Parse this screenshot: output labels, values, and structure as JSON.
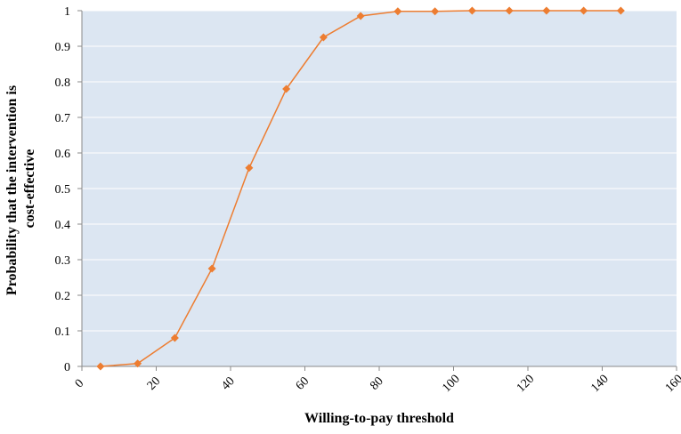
{
  "chart_data": {
    "type": "line",
    "title": "",
    "xlabel": "Willing-to-pay threshold",
    "ylabel_lines": [
      "Probability that the intervention is",
      "cost-effective"
    ],
    "xlim": [
      0,
      160
    ],
    "ylim": [
      0,
      1
    ],
    "x_ticks": [
      0,
      20,
      40,
      60,
      80,
      100,
      120,
      140,
      160
    ],
    "y_ticks": [
      0,
      0.1,
      0.2,
      0.3,
      0.4,
      0.5,
      0.6,
      0.7,
      0.8,
      0.9,
      1
    ],
    "x_tick_labels": [
      "0",
      "20",
      "40",
      "60",
      "80",
      "100",
      "120",
      "140",
      "160"
    ],
    "y_tick_labels": [
      "0",
      "0.1",
      "0.2",
      "0.3",
      "0.4",
      "0.5",
      "0.6",
      "0.7",
      "0.8",
      "0.9",
      "1"
    ],
    "grid": "horizontal",
    "legend": "none",
    "colors": {
      "plot_background": "#dce6f2",
      "series": "#ed7d31",
      "grid": "#ffffff"
    },
    "series": [
      {
        "marker": "diamond",
        "x": [
          5,
          15,
          25,
          35,
          45,
          55,
          65,
          75,
          85,
          95,
          105,
          115,
          125,
          135,
          145
        ],
        "y": [
          0,
          0.008,
          0.08,
          0.275,
          0.558,
          0.78,
          0.925,
          0.985,
          0.998,
          0.998,
          1,
          1,
          1,
          1,
          1
        ]
      }
    ]
  }
}
